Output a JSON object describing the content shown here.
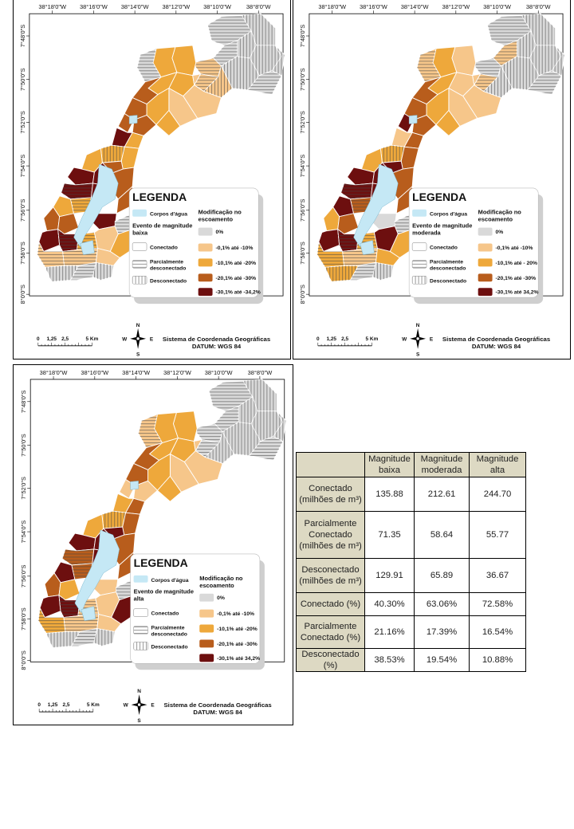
{
  "panels": [
    {
      "id": "low",
      "lon_labels": [
        "38°18'0\"W",
        "38°16'0\"W",
        "38°14'0\"W",
        "38°12'0\"W",
        "38°10'0\"W",
        "38°8'0\"W"
      ],
      "lat_labels": [
        "7°48'0\"S",
        "7°50'0\"S",
        "7°52'0\"S",
        "7°54'0\"S",
        "7°56'0\"S",
        "7°58'0\"S",
        "8°0'0\"S"
      ],
      "legend": {
        "title": "LEGENDA",
        "water": "Corpos d'água",
        "event_line1": "Evento de magnitude",
        "event_line2": "baixa",
        "connected": "Conectado",
        "partial_line1": "Parcialmente",
        "partial_line2": "desconectado",
        "disconnected": "Desconectado",
        "mod_line1": "Modificação no",
        "mod_line2": "escoamento",
        "classes": [
          "0%",
          "-0,1% até -10%",
          "-10,1% até -20%",
          "-20,1% até -30%",
          "-30,1% até -34,2%"
        ]
      },
      "scale_labels": [
        "0",
        "1,25",
        "2,5",
        "5 Km"
      ],
      "compass": {
        "n": "N",
        "s": "S",
        "e": "E",
        "w": "W"
      },
      "system_line1": "Sistema de Coordenada Geográficas",
      "system_line2": "DATUM: WGS 84"
    },
    {
      "id": "mod",
      "lon_labels": [
        "38°18'0\"W",
        "38°16'0\"W",
        "38°14'0\"W",
        "38°12'0\"W",
        "38°10'0\"W",
        "38°8'0\"W"
      ],
      "lat_labels": [
        "7°48'0\"S",
        "7°50'0\"S",
        "7°52'0\"S",
        "7°54'0\"S",
        "7°56'0\"S",
        "7°58'0\"S",
        "8°0'0\"S"
      ],
      "legend": {
        "title": "LEGENDA",
        "water": "Corpos d'água",
        "event_line1": "Evento de magnitude",
        "event_line2": "moderada",
        "connected": "Conectado",
        "partial_line1": "Parcialmente",
        "partial_line2": "desconectado",
        "disconnected": "Desconectado",
        "mod_line1": "Modificação no",
        "mod_line2": "escoamento",
        "classes": [
          "0%",
          "-0,1% até -10%",
          "-10,1% até - 20%",
          "-20,1% até -30%",
          "-30,1% até 34,2%"
        ]
      },
      "scale_labels": [
        "0",
        "1,25",
        "2,5",
        "5 Km"
      ],
      "compass": {
        "n": "N",
        "s": "S",
        "e": "E",
        "w": "W"
      },
      "system_line1": "Sistema de Coordenada Geográficas",
      "system_line2": "DATUM: WGS 84"
    },
    {
      "id": "high",
      "lon_labels": [
        "38°18'0\"W",
        "38°16'0\"W",
        "38°14'0\"W",
        "38°12'0\"W",
        "38°10'0\"W",
        "38°8'0\"W"
      ],
      "lat_labels": [
        "7°48'0\"S",
        "7°50'0\"S",
        "7°52'0\"S",
        "7°54'0\"S",
        "7°56'0\"S",
        "7°58'0\"S",
        "8°0'0\"S"
      ],
      "legend": {
        "title": "LEGENDA",
        "water": "Corpos d'água",
        "event_line1": "Evento de magnitude",
        "event_line2": "alta",
        "connected": "Conectado",
        "partial_line1": "Parcialmente",
        "partial_line2": "desconectado",
        "disconnected": "Desconectado",
        "mod_line1": "Modificação no",
        "mod_line2": "escoamento",
        "classes": [
          "0%",
          "-0,1% até -10%",
          "-10,1% até -20%",
          "-20,1% até -30%",
          "-30,1% até 34,2%"
        ]
      },
      "scale_labels": [
        "0",
        "1,25",
        "2,5",
        "5 Km"
      ],
      "compass": {
        "n": "N",
        "s": "S",
        "e": "E",
        "w": "W"
      },
      "system_line1": "Sistema de Coordenada Geográficas",
      "system_line2": "DATUM: WGS 84"
    }
  ],
  "colors": {
    "water": "#c5e8f5",
    "class_0": "#d9d9d9",
    "class_1": "#f6c68a",
    "class_2": "#eea83b",
    "class_3": "#b85d1c",
    "class_4": "#6d0f0f",
    "table_header": "#ddd9c3"
  },
  "table": {
    "columns": [
      "",
      "Magnitude baixa",
      "Magnitude moderada",
      "Magnitude alta"
    ],
    "rows": [
      {
        "label": "Conectado (milhões de m³)",
        "values": [
          "135.88",
          "212.61",
          "244.70"
        ]
      },
      {
        "label": "Parcialmente Conectado (milhões de m³)",
        "values": [
          "71.35",
          "58.64",
          "55.77"
        ]
      },
      {
        "label": "Desconectado (milhões de m³)",
        "values": [
          "129.91",
          "65.89",
          "36.67"
        ]
      },
      {
        "label": "Conectado (%)",
        "values": [
          "40.30%",
          "63.06%",
          "72.58%"
        ]
      },
      {
        "label": "Parcialmente Conectado (%)",
        "values": [
          "21.16%",
          "17.39%",
          "16.54%"
        ]
      },
      {
        "label": "Desconectado (%)",
        "values": [
          "38.53%",
          "19.54%",
          "10.88%"
        ]
      }
    ]
  }
}
